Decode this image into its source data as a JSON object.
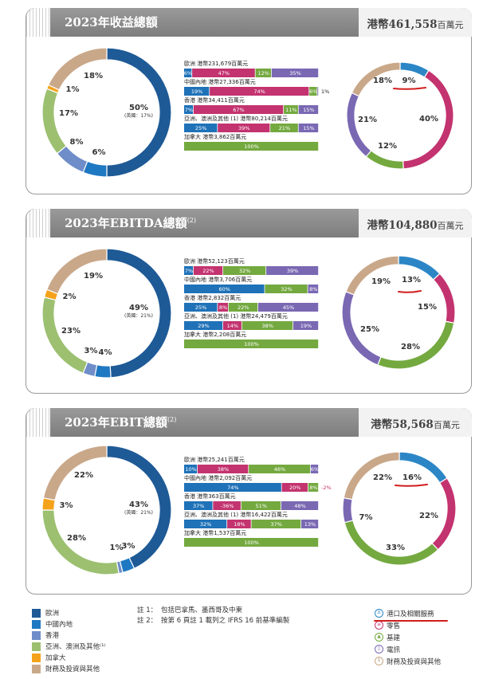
{
  "colors": {
    "europe": "#1e5a96",
    "mainland": "#1f78c2",
    "hongkong": "#6f8dc8",
    "asia": "#9cc070",
    "canada": "#f5a21b",
    "finance": "#c9a88a",
    "ports": "#2c86c6",
    "retail": "#c3336f",
    "infra": "#74a940",
    "telecom": "#7a68b3",
    "finance_bu": "#c9a88a",
    "bar_ports": "#1f72b8",
    "bar_retail": "#c3336f",
    "bar_infra": "#74a940",
    "bar_telecom": "#7a68b3"
  },
  "legend": [
    {
      "label": "歐洲",
      "color": "#1e5a96"
    },
    {
      "label": "中國內地",
      "color": "#1f78c2"
    },
    {
      "label": "香港",
      "color": "#6f8dc8"
    },
    {
      "label": "亞洲、澳洲及其他⁽¹⁾",
      "color": "#9cc070"
    },
    {
      "label": "加拿大",
      "color": "#f5a21b"
    },
    {
      "label": "財務及投資與其他",
      "color": "#c9a88a"
    }
  ],
  "notes": [
    {
      "key": "註 1：",
      "text": "包括巴拿馬、墨西哥及中東"
    },
    {
      "key": "註 2：",
      "text": "按第 6 頁註 1 載列之 IFRS 16 前基準編製"
    }
  ],
  "bu_legend": [
    {
      "label": "港口及相關服務",
      "icon": "ship-icon",
      "color": "#2c86c6"
    },
    {
      "label": "零售",
      "icon": "cart-icon",
      "color": "#c3336f"
    },
    {
      "label": "基建",
      "icon": "tower-icon",
      "color": "#74a940"
    },
    {
      "label": "電訊",
      "icon": "phone-icon",
      "color": "#7a68b3"
    },
    {
      "label": "財務及投資與其他",
      "icon": "coin-icon",
      "color": "#c9a88a"
    }
  ],
  "panels": [
    {
      "title": "2023年收益總額",
      "title_sup": "",
      "total_prefix": "港幣461,558",
      "total_unit": "百萬元"
    },
    {
      "title": "2023年EBITDA總額",
      "title_sup": "(2)",
      "total_prefix": "港幣104,880",
      "total_unit": "百萬元"
    },
    {
      "title": "2023年EBIT總額",
      "title_sup": "(2)",
      "total_prefix": "港幣58,568",
      "total_unit": "百萬元"
    }
  ],
  "chart_data": [
    {
      "type": "pie",
      "subtype": "donut",
      "title": "2023年收益總額",
      "slices": [
        {
          "label": "歐洲",
          "value": 50,
          "text": "50%",
          "sub": "(英國：17%)"
        },
        {
          "label": "中國內地",
          "value": 6,
          "text": "6%"
        },
        {
          "label": "香港",
          "value": 8,
          "text": "8%"
        },
        {
          "label": "亞洲、澳洲及其他",
          "value": 17,
          "text": "17%"
        },
        {
          "label": "加拿大",
          "value": 1,
          "text": "1%"
        },
        {
          "label": "財務及投資與其他",
          "value": 18,
          "text": "18%"
        }
      ]
    },
    {
      "type": "bar",
      "subtype": "stacked-100",
      "title": "2023年收益總額 by region",
      "rows": [
        {
          "region": "歐洲",
          "sup": "",
          "amount": "港幣231,679百萬元",
          "segments": [
            6,
            47,
            12,
            35
          ],
          "labels": [
            "6%",
            "47%",
            "12%",
            "35%"
          ],
          "outside": ""
        },
        {
          "region": "中國內地",
          "sup": "",
          "amount": "港幣27,336百萬元",
          "segments": [
            19,
            74,
            6,
            1
          ],
          "labels": [
            "19%",
            "74%",
            "6%",
            ""
          ],
          "outside": "1%"
        },
        {
          "region": "香港",
          "sup": "",
          "amount": "港幣34,411百萬元",
          "segments": [
            7,
            67,
            11,
            15
          ],
          "labels": [
            "7%",
            "67%",
            "11%",
            "15%"
          ],
          "outside": ""
        },
        {
          "region": "亞洲、澳洲及其他",
          "sup": "(1)",
          "amount": "港幣80,214百萬元",
          "segments": [
            25,
            39,
            21,
            15
          ],
          "labels": [
            "25%",
            "39%",
            "21%",
            "15%"
          ],
          "outside": ""
        },
        {
          "region": "加拿大",
          "sup": "",
          "amount": "港幣3,862百萬元",
          "segments": [
            0,
            0,
            100,
            0
          ],
          "labels": [
            "",
            "",
            "100%",
            ""
          ],
          "outside": ""
        }
      ]
    },
    {
      "type": "pie",
      "subtype": "donut",
      "title": "2023年收益總額 by business",
      "slices": [
        {
          "label": "港口及相關服務",
          "value": 9,
          "text": "9%"
        },
        {
          "label": "零售",
          "value": 40,
          "text": "40%"
        },
        {
          "label": "基建",
          "value": 12,
          "text": "12%"
        },
        {
          "label": "電訊",
          "value": 21,
          "text": "21%"
        },
        {
          "label": "財務及投資與其他",
          "value": 18,
          "text": "18%"
        }
      ]
    },
    {
      "type": "pie",
      "subtype": "donut",
      "title": "2023年EBITDA總額",
      "slices": [
        {
          "label": "歐洲",
          "value": 49,
          "text": "49%",
          "sub": "(英國：21%)"
        },
        {
          "label": "中國內地",
          "value": 4,
          "text": "4%"
        },
        {
          "label": "香港",
          "value": 3,
          "text": "3%"
        },
        {
          "label": "亞洲、澳洲及其他",
          "value": 23,
          "text": "23%"
        },
        {
          "label": "加拿大",
          "value": 2,
          "text": "2%"
        },
        {
          "label": "財務及投資與其他",
          "value": 19,
          "text": "19%"
        }
      ]
    },
    {
      "type": "bar",
      "subtype": "stacked-100",
      "title": "2023年EBITDA總額 by region",
      "rows": [
        {
          "region": "歐洲",
          "sup": "",
          "amount": "港幣52,123百萬元",
          "segments": [
            7,
            22,
            32,
            39
          ],
          "labels": [
            "7%",
            "22%",
            "32%",
            "39%"
          ],
          "outside": ""
        },
        {
          "region": "中國內地",
          "sup": "",
          "amount": "港幣3,706百萬元",
          "segments": [
            60,
            0,
            32,
            8
          ],
          "labels": [
            "60%",
            "",
            "32%",
            "8%"
          ],
          "outside": ""
        },
        {
          "region": "香港",
          "sup": "",
          "amount": "港幣2,832百萬元",
          "segments": [
            25,
            8,
            22,
            45
          ],
          "labels": [
            "25%",
            "8%",
            "22%",
            "45%"
          ],
          "outside": ""
        },
        {
          "region": "亞洲、澳洲及其他",
          "sup": "(1)",
          "amount": "港幣24,479百萬元",
          "segments": [
            29,
            14,
            38,
            19
          ],
          "labels": [
            "29%",
            "14%",
            "38%",
            "19%"
          ],
          "outside": ""
        },
        {
          "region": "加拿大",
          "sup": "",
          "amount": "港幣2,208百萬元",
          "segments": [
            0,
            0,
            100,
            0
          ],
          "labels": [
            "",
            "",
            "100%",
            ""
          ],
          "outside": ""
        }
      ]
    },
    {
      "type": "pie",
      "subtype": "donut",
      "title": "2023年EBITDA總額 by business",
      "slices": [
        {
          "label": "港口及相關服務",
          "value": 13,
          "text": "13%"
        },
        {
          "label": "零售",
          "value": 15,
          "text": "15%"
        },
        {
          "label": "基建",
          "value": 28,
          "text": "28%"
        },
        {
          "label": "電訊",
          "value": 25,
          "text": "25%"
        },
        {
          "label": "財務及投資與其他",
          "value": 19,
          "text": "19%"
        }
      ]
    },
    {
      "type": "pie",
      "subtype": "donut",
      "title": "2023年EBIT總額",
      "slices": [
        {
          "label": "歐洲",
          "value": 43,
          "text": "43%",
          "sub": "(英國：21%)"
        },
        {
          "label": "中國內地",
          "value": 3,
          "text": "3%"
        },
        {
          "label": "香港",
          "value": 1,
          "text": "1%"
        },
        {
          "label": "亞洲、澳洲及其他",
          "value": 28,
          "text": "28%"
        },
        {
          "label": "加拿大",
          "value": 3,
          "text": "3%"
        },
        {
          "label": "財務及投資與其他",
          "value": 22,
          "text": "22%"
        }
      ]
    },
    {
      "type": "bar",
      "subtype": "stacked-100",
      "title": "2023年EBIT總額 by region",
      "rows": [
        {
          "region": "歐洲",
          "sup": "",
          "amount": "港幣25,241百萬元",
          "segments": [
            10,
            38,
            46,
            6
          ],
          "labels": [
            "10%",
            "38%",
            "46%",
            "6%"
          ],
          "outside": ""
        },
        {
          "region": "中國內地",
          "sup": "",
          "amount": "港幣2,092百萬元",
          "segments": [
            74,
            20,
            8,
            0
          ],
          "labels": [
            "74%",
            "20%",
            "8%",
            ""
          ],
          "outside": "-2%"
        },
        {
          "region": "香港",
          "sup": "",
          "amount": "港幣363百萬元",
          "segments": [
            37,
            -36,
            51,
            48
          ],
          "labels": [
            "37%",
            "-36%",
            "51%",
            "48%"
          ],
          "outside": ""
        },
        {
          "region": "亞洲、澳洲及其他",
          "sup": "(1)",
          "amount": "港幣16,422百萬元",
          "segments": [
            32,
            18,
            37,
            13
          ],
          "labels": [
            "32%",
            "18%",
            "37%",
            "13%"
          ],
          "outside": ""
        },
        {
          "region": "加拿大",
          "sup": "",
          "amount": "港幣1,537百萬元",
          "segments": [
            0,
            0,
            100,
            0
          ],
          "labels": [
            "",
            "",
            "100%",
            ""
          ],
          "outside": ""
        }
      ]
    },
    {
      "type": "pie",
      "subtype": "donut",
      "title": "2023年EBIT總額 by business",
      "slices": [
        {
          "label": "港口及相關服務",
          "value": 16,
          "text": "16%"
        },
        {
          "label": "零售",
          "value": 22,
          "text": "22%"
        },
        {
          "label": "基建",
          "value": 33,
          "text": "33%"
        },
        {
          "label": "電訊",
          "value": 7,
          "text": "7%"
        },
        {
          "label": "財務及投資與其他",
          "value": 22,
          "text": "22%"
        }
      ]
    }
  ]
}
